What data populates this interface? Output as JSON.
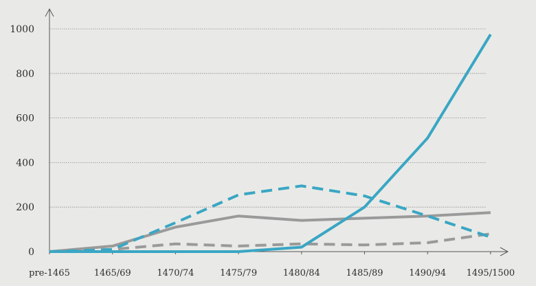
{
  "chart_data": {
    "type": "line",
    "categories": [
      "pre-1465",
      "1465/69",
      "1470/74",
      "1475/79",
      "1480/84",
      "1485/89",
      "1490/94",
      "1495/1500"
    ],
    "y_ticks": [
      0,
      200,
      400,
      600,
      800,
      1000
    ],
    "ylim": [
      0,
      1000
    ],
    "grid": true,
    "series": [
      {
        "id": "solid-blue",
        "color": "#3aa6c4",
        "dash": false,
        "values": [
          0,
          0,
          0,
          0,
          20,
          200,
          510,
          975
        ]
      },
      {
        "id": "dashed-blue",
        "color": "#3aa6c4",
        "dash": true,
        "values": [
          0,
          10,
          130,
          255,
          295,
          250,
          160,
          65
        ]
      },
      {
        "id": "solid-grey",
        "color": "#9a9a9a",
        "dash": false,
        "values": [
          0,
          25,
          110,
          160,
          140,
          150,
          160,
          175
        ]
      },
      {
        "id": "dashed-grey",
        "color": "#9a9a9a",
        "dash": true,
        "values": [
          0,
          10,
          35,
          25,
          35,
          30,
          40,
          80
        ]
      }
    ]
  }
}
